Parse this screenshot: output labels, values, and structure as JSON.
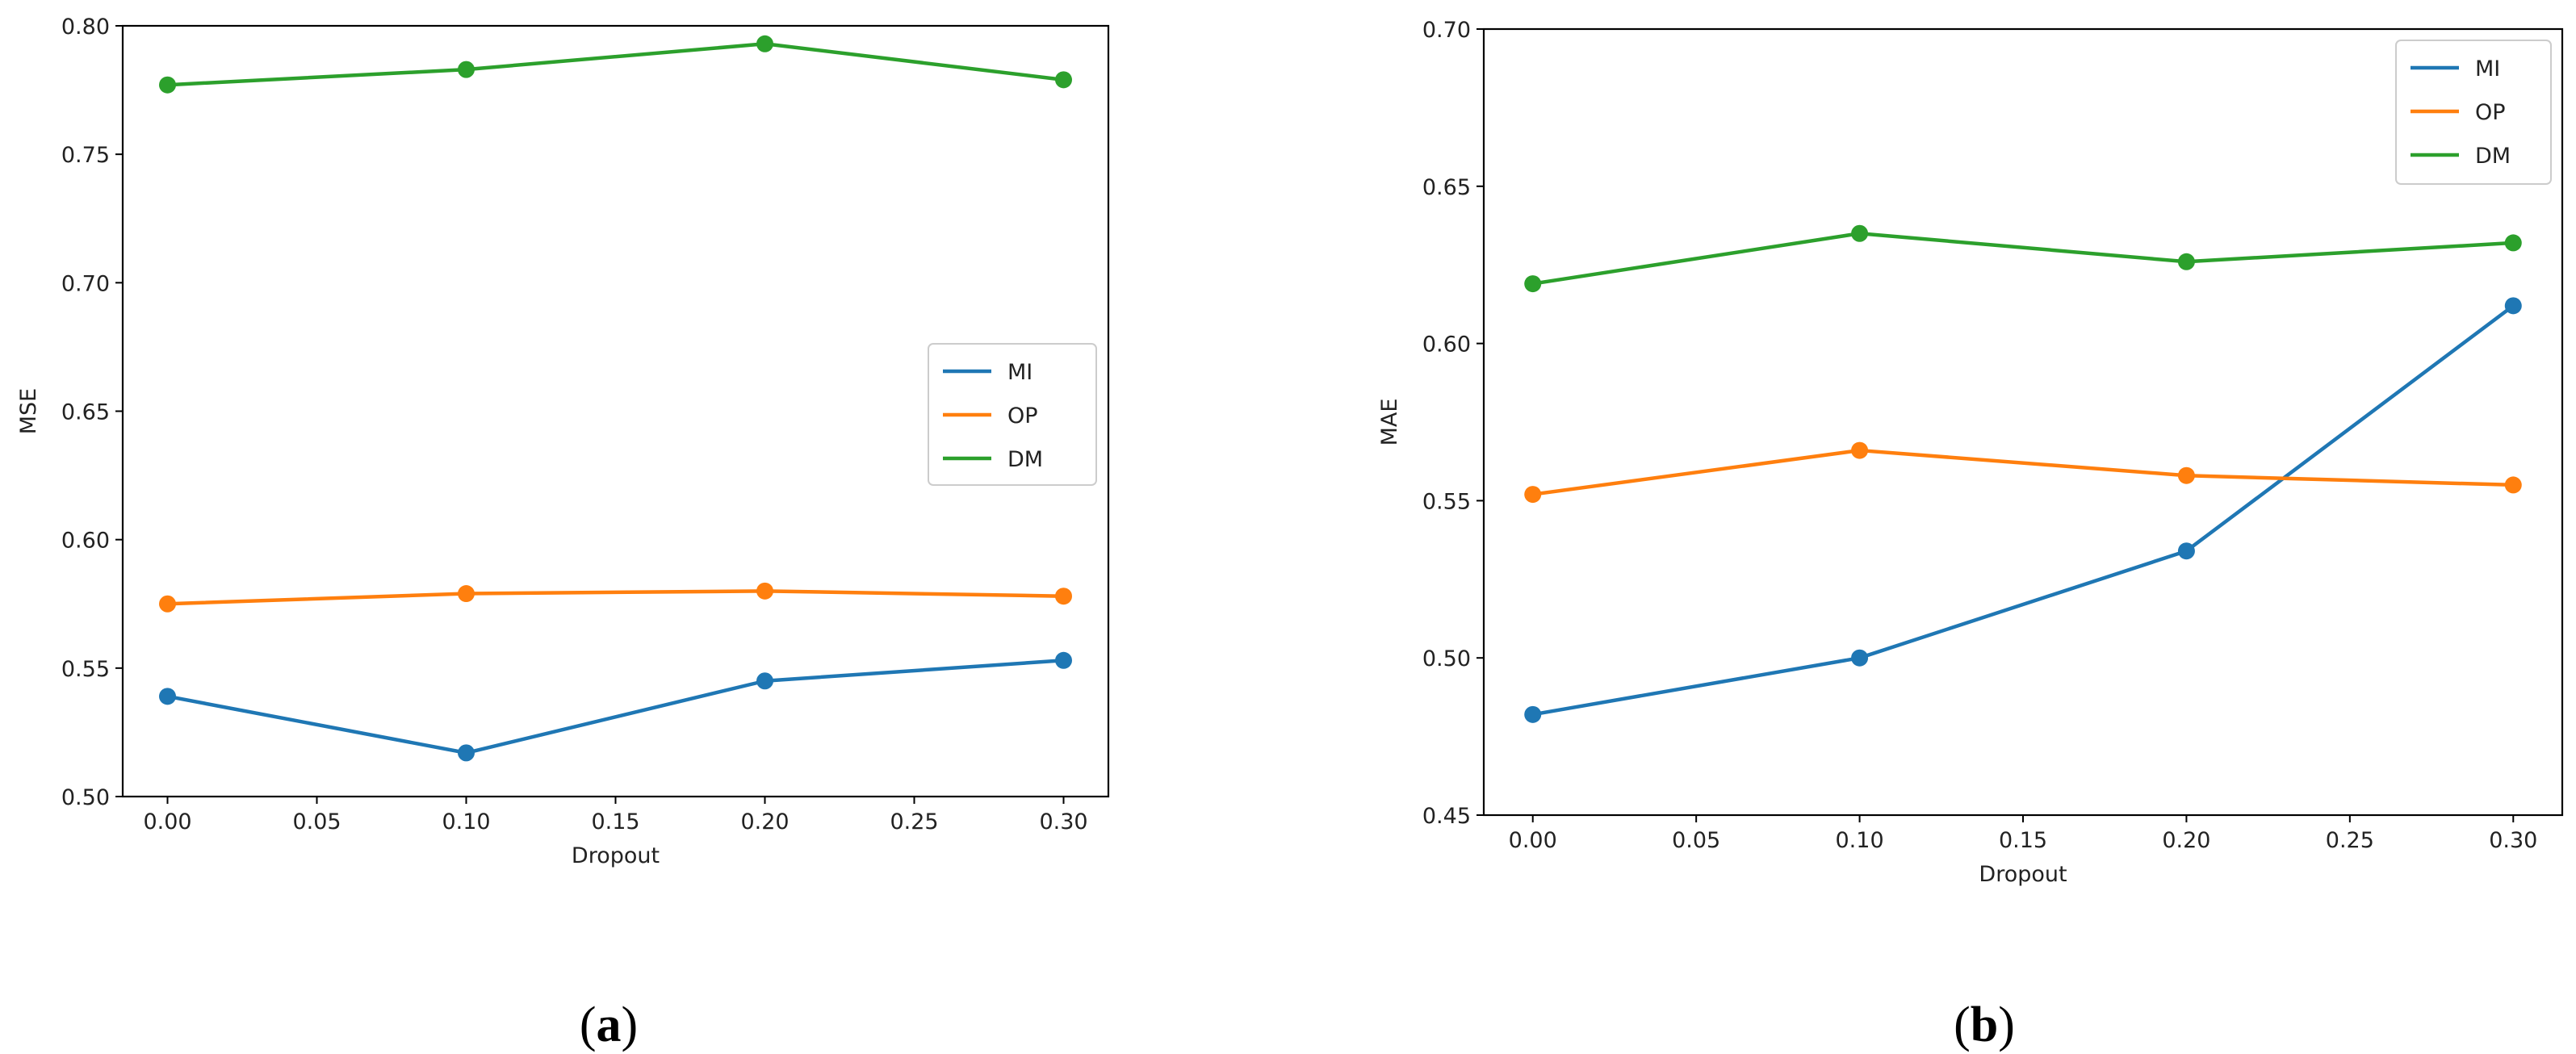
{
  "figure": {
    "panel_a_caption": {
      "open": "(",
      "letter": "a",
      "close": ")"
    },
    "panel_b_caption": {
      "open": "(",
      "letter": "b",
      "close": ")"
    }
  },
  "colors": {
    "MI": "#1f77b4",
    "OP": "#ff7f0e",
    "DM": "#2ca02c",
    "axis": "#000000",
    "legend_border": "#cccccc"
  },
  "chart_data": [
    {
      "type": "line",
      "panel": "a",
      "title": "",
      "xlabel": "Dropout",
      "ylabel": "MSE",
      "x": [
        0.0,
        0.1,
        0.2,
        0.3
      ],
      "xlim": [
        -0.015,
        0.315
      ],
      "ylim": [
        0.5,
        0.8
      ],
      "xticks": [
        0.0,
        0.05,
        0.1,
        0.15,
        0.2,
        0.25,
        0.3
      ],
      "xtick_labels": [
        "0.00",
        "0.05",
        "0.10",
        "0.15",
        "0.20",
        "0.25",
        "0.30"
      ],
      "yticks": [
        0.5,
        0.55,
        0.6,
        0.65,
        0.7,
        0.75,
        0.8
      ],
      "ytick_labels": [
        "0.50",
        "0.55",
        "0.60",
        "0.65",
        "0.70",
        "0.75",
        "0.80"
      ],
      "legend_position": "center-right",
      "grid": false,
      "series": [
        {
          "name": "MI",
          "values": [
            0.539,
            0.517,
            0.545,
            0.553
          ]
        },
        {
          "name": "OP",
          "values": [
            0.575,
            0.579,
            0.58,
            0.578
          ]
        },
        {
          "name": "DM",
          "values": [
            0.777,
            0.783,
            0.793,
            0.779
          ]
        }
      ]
    },
    {
      "type": "line",
      "panel": "b",
      "title": "",
      "xlabel": "Dropout",
      "ylabel": "MAE",
      "x": [
        0.0,
        0.1,
        0.2,
        0.3
      ],
      "xlim": [
        -0.015,
        0.315
      ],
      "ylim": [
        0.45,
        0.7
      ],
      "xticks": [
        0.0,
        0.05,
        0.1,
        0.15,
        0.2,
        0.25,
        0.3
      ],
      "xtick_labels": [
        "0.00",
        "0.05",
        "0.10",
        "0.15",
        "0.20",
        "0.25",
        "0.30"
      ],
      "yticks": [
        0.45,
        0.5,
        0.55,
        0.6,
        0.65,
        0.7
      ],
      "ytick_labels": [
        "0.45",
        "0.50",
        "0.55",
        "0.60",
        "0.65",
        "0.70"
      ],
      "legend_position": "top-right",
      "grid": false,
      "series": [
        {
          "name": "MI",
          "values": [
            0.482,
            0.5,
            0.534,
            0.612
          ]
        },
        {
          "name": "OP",
          "values": [
            0.552,
            0.566,
            0.558,
            0.555
          ]
        },
        {
          "name": "DM",
          "values": [
            0.619,
            0.635,
            0.626,
            0.632
          ]
        }
      ]
    }
  ]
}
